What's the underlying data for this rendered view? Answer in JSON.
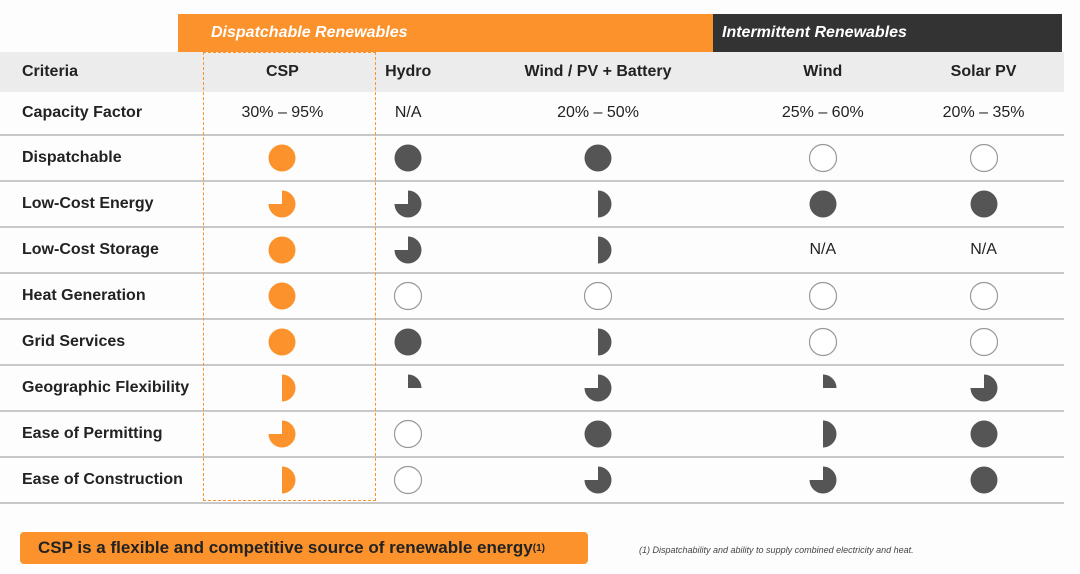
{
  "header_bands": {
    "dispatchable": "Dispatchable Renewables",
    "intermittent": "Intermittent Renewables"
  },
  "columns": [
    "Criteria",
    "CSP",
    "Hydro",
    "Wind / PV + Battery",
    "Wind",
    "Solar PV"
  ],
  "colors": {
    "orange": "#fb922c",
    "dark": "#555555",
    "empty_outline": "#999999"
  },
  "capacity_factor": {
    "label": "Capacity Factor",
    "values": [
      "30% – 95%",
      "N/A",
      "20% – 50%",
      "25% – 60%",
      "20% – 35%"
    ]
  },
  "rating_scale": "quarters filled, 0–4",
  "rows": [
    {
      "label": "Dispatchable",
      "ratings": [
        4,
        4,
        4,
        0,
        0
      ]
    },
    {
      "label": "Low-Cost Energy",
      "ratings": [
        3,
        3,
        2,
        4,
        4
      ]
    },
    {
      "label": "Low-Cost Storage",
      "ratings": [
        4,
        3,
        2,
        "N/A",
        "N/A"
      ]
    },
    {
      "label": "Heat Generation",
      "ratings": [
        4,
        0,
        0,
        0,
        0
      ]
    },
    {
      "label": "Grid Services",
      "ratings": [
        4,
        4,
        2,
        0,
        0
      ]
    },
    {
      "label": "Geographic Flexibility",
      "ratings": [
        2,
        1,
        3,
        1,
        3
      ]
    },
    {
      "label": "Ease of Permitting",
      "ratings": [
        3,
        0,
        4,
        2,
        4
      ]
    },
    {
      "label": "Ease of Construction",
      "ratings": [
        2,
        0,
        3,
        3,
        4
      ]
    }
  ],
  "conclusion": {
    "text": "CSP is a flexible and competitive source of renewable energy",
    "sup": "(1)"
  },
  "footnote": "(1) Dispatchability and ability to supply combined electricity and heat."
}
